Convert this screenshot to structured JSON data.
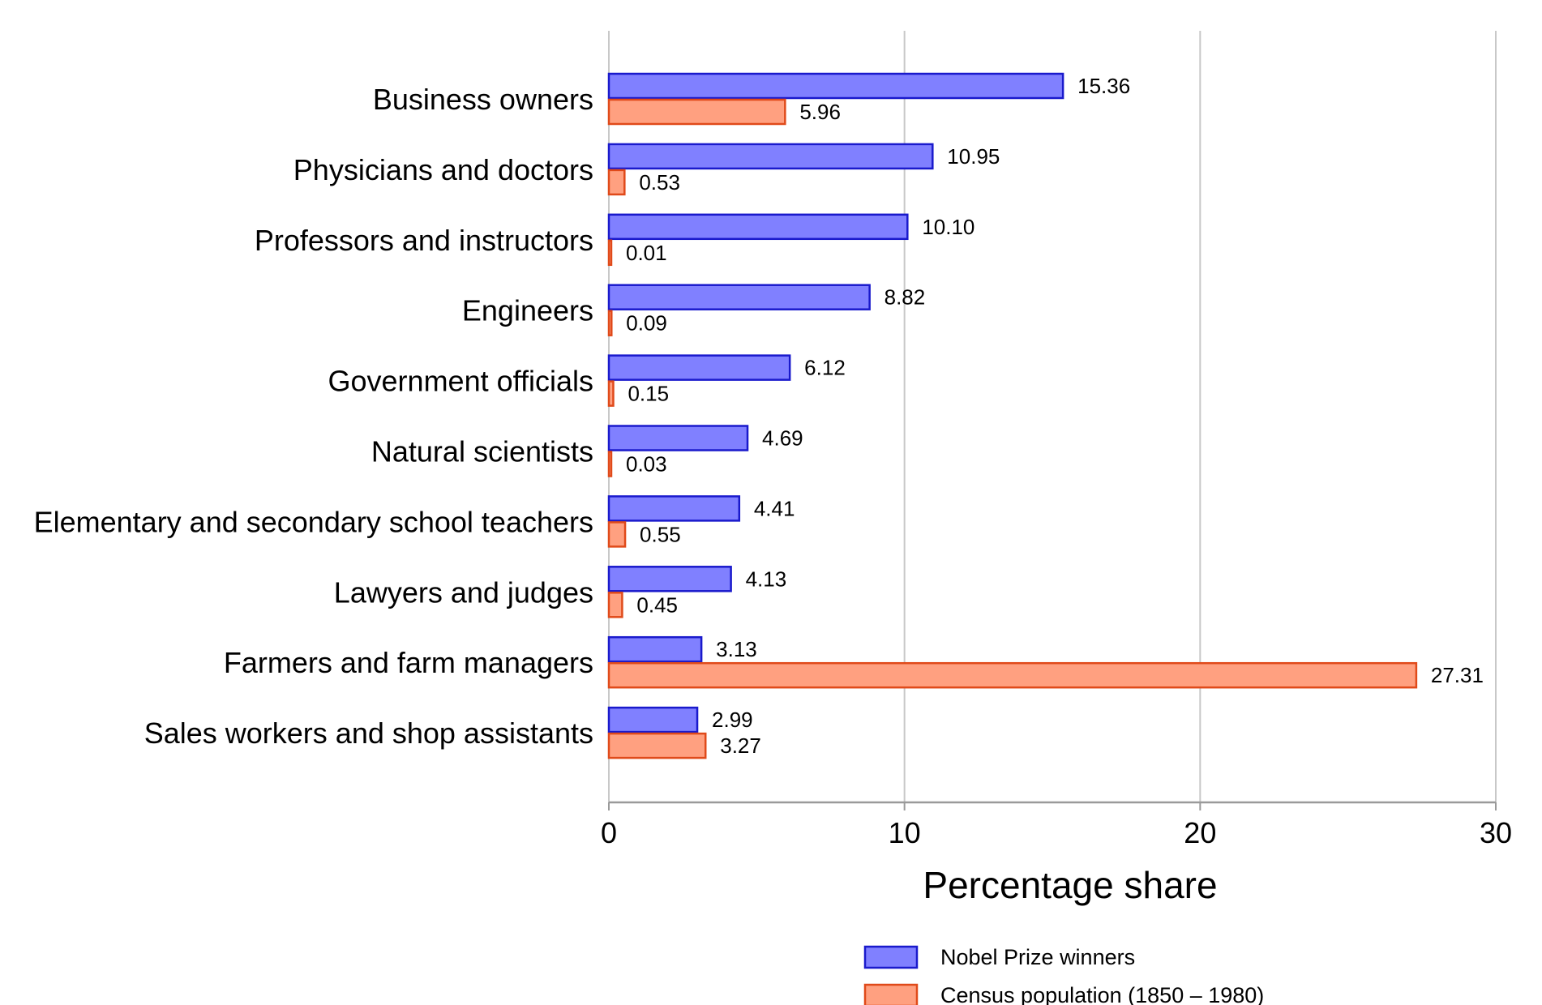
{
  "chart_data": {
    "type": "bar",
    "orientation": "horizontal",
    "title": "",
    "xlabel": "Percentage share",
    "ylabel": "",
    "xlim": [
      0,
      30
    ],
    "xticks": [
      0,
      10,
      20,
      30
    ],
    "grid": true,
    "legend_position": "bottom-center",
    "categories": [
      "Business owners",
      "Physicians and doctors",
      "Professors and instructors",
      "Engineers",
      "Government officials",
      "Natural scientists",
      "Elementary and secondary school teachers",
      "Lawyers and judges",
      "Farmers and farm managers",
      "Sales workers and shop assistants"
    ],
    "series": [
      {
        "name": "Nobel Prize winners",
        "color": "#8080ff",
        "stroke": "#1a1acc",
        "values": [
          15.36,
          10.95,
          10.1,
          8.82,
          6.12,
          4.69,
          4.41,
          4.13,
          3.13,
          2.99
        ],
        "labels": [
          "15.36",
          "10.95",
          "10.10",
          "8.82",
          "6.12",
          "4.69",
          "4.41",
          "4.13",
          "3.13",
          "2.99"
        ]
      },
      {
        "name": "Census population (1850 – 1980)",
        "color": "#ffa080",
        "stroke": "#e04a1a",
        "values": [
          5.96,
          0.53,
          0.01,
          0.09,
          0.15,
          0.03,
          0.55,
          0.45,
          27.31,
          3.27
        ],
        "labels": [
          "5.96",
          "0.53",
          "0.01",
          "0.09",
          "0.15",
          "0.03",
          "0.55",
          "0.45",
          "27.31",
          "3.27"
        ]
      }
    ]
  }
}
